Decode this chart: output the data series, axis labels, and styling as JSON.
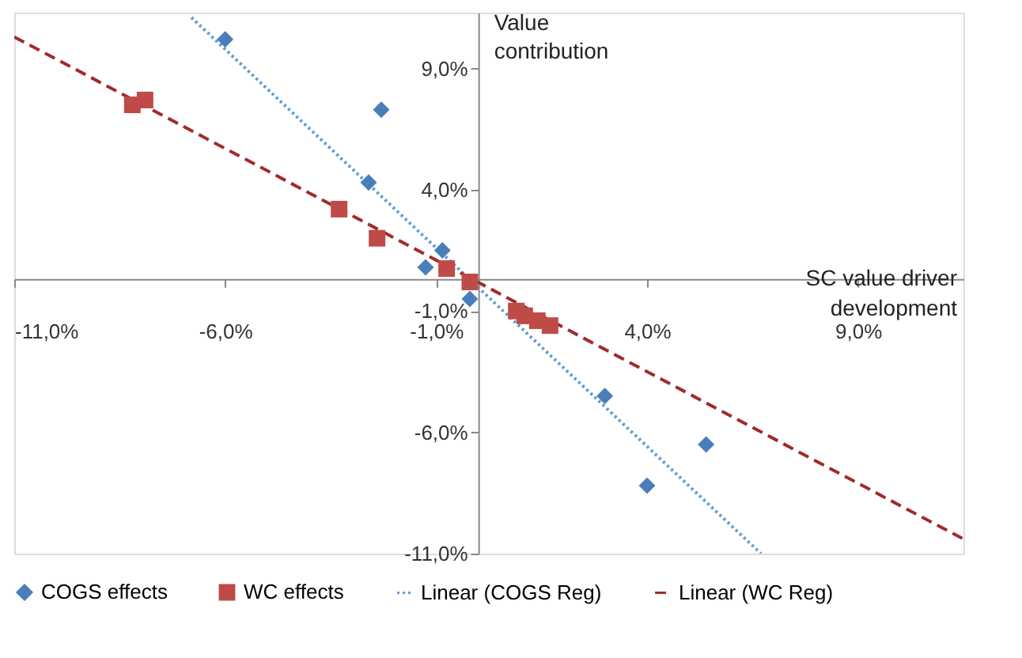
{
  "chart_data": {
    "type": "scatter",
    "xlabel": "SC value driver development",
    "ylabel": "Value contribution",
    "xlim": [
      -11,
      11.5
    ],
    "ylim": [
      -11,
      11.3
    ],
    "xticks": [
      {
        "value": -11,
        "label": "-11,0%"
      },
      {
        "value": -6,
        "label": "-6,0%"
      },
      {
        "value": -1,
        "label": "-1,0%"
      },
      {
        "value": 4,
        "label": "4,0%"
      },
      {
        "value": 9,
        "label": "9,0%"
      }
    ],
    "yticks": [
      {
        "value": -11,
        "label": "-11,0%"
      },
      {
        "value": -6,
        "label": "-6,0%"
      },
      {
        "value": -1,
        "label": "-1,0%"
      },
      {
        "value": 4,
        "label": "4,0%"
      },
      {
        "value": 9,
        "label": "9,0%"
      }
    ],
    "grid": false,
    "legend": "bottom",
    "series": [
      {
        "name": "COGS effects",
        "marker": "diamond",
        "color": "#4a7ebb",
        "x": [
          -6.0,
          -2.3,
          -2.6,
          -0.85,
          -1.25,
          -0.2,
          3.0,
          4.0,
          5.4
        ],
        "values": [
          10.2,
          7.3,
          4.3,
          1.5,
          0.8,
          -0.5,
          -4.5,
          -8.2,
          -6.5
        ]
      },
      {
        "name": "WC effects",
        "marker": "square",
        "color": "#be4b48",
        "x": [
          -8.2,
          -7.9,
          -3.3,
          -2.4,
          -0.75,
          -0.2,
          0.9,
          1.1,
          1.4,
          1.7
        ],
        "values": [
          7.5,
          7.7,
          3.2,
          2.0,
          0.75,
          0.2,
          -1.0,
          -1.2,
          -1.4,
          -1.6
        ]
      },
      {
        "name": "Linear (COGS Reg)",
        "type": "line",
        "marker": "none",
        "line_style": "dotted",
        "color": "#5b9bd5",
        "x": [
          -6.8,
          6.7
        ],
        "values": [
          11.1,
          -11.0
        ]
      },
      {
        "name": "Linear (WC Reg)",
        "type": "line",
        "marker": "none",
        "line_style": "dashed",
        "color": "#a02b2b",
        "x": [
          -11.0,
          11.5
        ],
        "values": [
          10.3,
          -10.4
        ]
      }
    ]
  }
}
